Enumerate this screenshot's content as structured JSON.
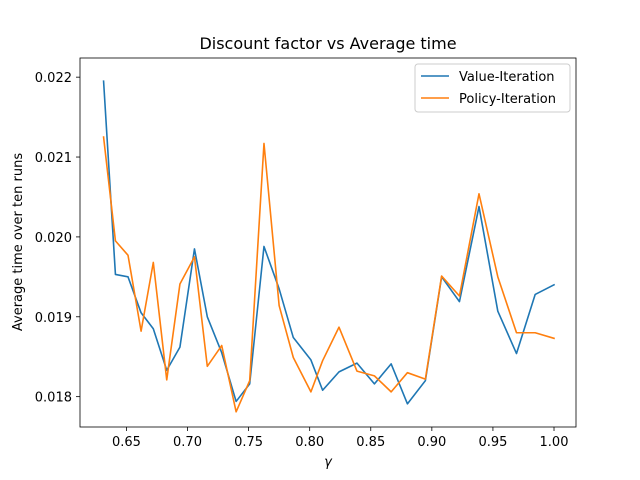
{
  "chart_data": {
    "type": "line",
    "title": "Discount factor vs Average time",
    "xlabel": "γ",
    "ylabel": "Average time over ten runs",
    "xlim": [
      0.612,
      1.018
    ],
    "ylim": [
      0.01762,
      0.02224
    ],
    "xticks": [
      0.65,
      0.7,
      0.75,
      0.8,
      0.85,
      0.9,
      0.95,
      1.0
    ],
    "xtick_labels": [
      "0.65",
      "0.70",
      "0.75",
      "0.80",
      "0.85",
      "0.90",
      "0.95",
      "1.00"
    ],
    "yticks": [
      0.018,
      0.019,
      0.02,
      0.021,
      0.022
    ],
    "ytick_labels": [
      "0.018",
      "0.019",
      "0.020",
      "0.021",
      "0.022"
    ],
    "legend_position": "upper right",
    "grid": false,
    "x": [
      0.6313,
      0.641,
      0.6513,
      0.662,
      0.672,
      0.683,
      0.6938,
      0.7057,
      0.7162,
      0.728,
      0.7398,
      0.7509,
      0.7626,
      0.775,
      0.7866,
      0.801,
      0.8106,
      0.824,
      0.8387,
      0.853,
      0.8667,
      0.88,
      0.8947,
      0.908,
      0.9226,
      0.9386,
      0.954,
      0.9693,
      0.9846,
      1.0
    ],
    "series": [
      {
        "name": "Value-Iteration",
        "color": "#1f77b4",
        "values": [
          0.02195,
          0.01953,
          0.0195,
          0.01905,
          0.01885,
          0.01833,
          0.01862,
          0.01985,
          0.019,
          0.01855,
          0.01794,
          0.01816,
          0.01988,
          0.01935,
          0.01874,
          0.01846,
          0.01808,
          0.01831,
          0.01842,
          0.01816,
          0.01841,
          0.01791,
          0.0182,
          0.0195,
          0.01919,
          0.02038,
          0.01907,
          0.01854,
          0.01928,
          0.0194
        ]
      },
      {
        "name": "Policy-Iteration",
        "color": "#ff7f0e",
        "values": [
          0.02125,
          0.01995,
          0.01977,
          0.01882,
          0.01968,
          0.01821,
          0.01941,
          0.01975,
          0.01838,
          0.01864,
          0.01781,
          0.0182,
          0.02117,
          0.01914,
          0.01849,
          0.01806,
          0.01845,
          0.01887,
          0.01832,
          0.01826,
          0.01806,
          0.0183,
          0.01822,
          0.01951,
          0.01926,
          0.02054,
          0.0195,
          0.0188,
          0.0188,
          0.01873
        ]
      }
    ]
  }
}
